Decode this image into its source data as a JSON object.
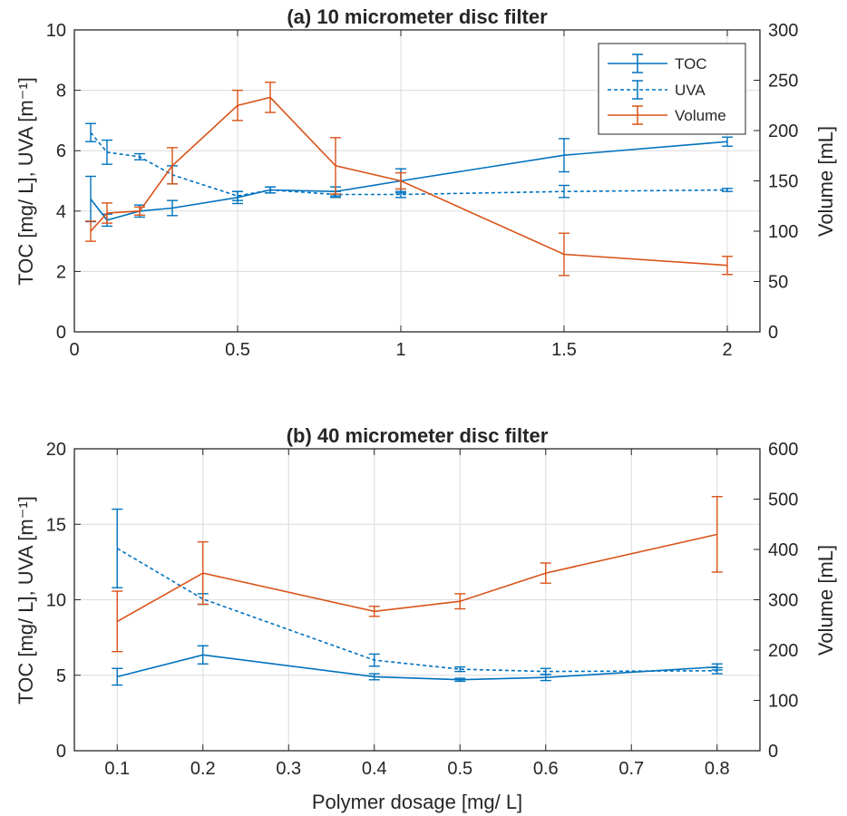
{
  "colors": {
    "toc": "#0072BD",
    "uva": "#0072BD",
    "volume": "#D95319",
    "grid": "#dcdcdc",
    "axis": "#262626"
  },
  "xlabel": "Polymer dosage [mg/ L]",
  "chart_data": [
    {
      "type": "line",
      "title": "(a) 10 micrometer disc filter",
      "ylabel_left": "TOC [mg/ L], UVA [m⁻¹]",
      "ylabel_right": "Volume [mL]",
      "xlim": [
        0,
        2.1
      ],
      "ylim_left": [
        0,
        10
      ],
      "ylim_right": [
        0,
        300
      ],
      "x_ticks": [
        0,
        0.5,
        1,
        1.5,
        2
      ],
      "x_tick_labels": [
        "0",
        "0.5",
        "1",
        "1.5",
        "2"
      ],
      "y_left_ticks": [
        0,
        2,
        4,
        6,
        8,
        10
      ],
      "y_right_ticks": [
        0,
        50,
        100,
        150,
        200,
        250,
        300
      ],
      "grid": true,
      "legend": {
        "placement": "top-right",
        "entries": [
          "TOC",
          "UVA",
          "Volume"
        ]
      },
      "series": [
        {
          "name": "TOC",
          "axis": "left",
          "style": "solid",
          "x": [
            0.05,
            0.1,
            0.2,
            0.3,
            0.5,
            0.6,
            0.8,
            1,
            1.5,
            2
          ],
          "y": [
            4.4,
            3.7,
            4.0,
            4.1,
            4.45,
            4.7,
            4.65,
            5.0,
            5.85,
            6.3
          ],
          "err": [
            0.75,
            0.2,
            0.2,
            0.25,
            0.2,
            0.1,
            0.15,
            0.4,
            0.55,
            0.15
          ]
        },
        {
          "name": "UVA",
          "axis": "left",
          "style": "dashed",
          "x": [
            0.05,
            0.1,
            0.2,
            0.3,
            0.5,
            0.6,
            0.8,
            1,
            1.5,
            2
          ],
          "y": [
            6.6,
            5.95,
            5.8,
            5.2,
            4.5,
            4.7,
            4.55,
            4.55,
            4.65,
            4.7
          ],
          "err": [
            0.3,
            0.4,
            0.1,
            0.3,
            0.15,
            0.1,
            0.1,
            0.1,
            0.2,
            0.05
          ]
        },
        {
          "name": "Volume",
          "axis": "right",
          "style": "solid",
          "x": [
            0.05,
            0.1,
            0.2,
            0.3,
            0.5,
            0.6,
            0.8,
            1,
            1.5,
            2
          ],
          "y": [
            100,
            118,
            120,
            165,
            225,
            233,
            165,
            150,
            77,
            66
          ],
          "err": [
            10,
            10,
            4,
            18,
            15,
            15,
            28,
            8,
            21,
            9
          ]
        }
      ]
    },
    {
      "type": "line",
      "title": "(b) 40 micrometer disc filter",
      "xlabel": "Polymer dosage [mg/ L]",
      "ylabel_left": "TOC [mg/ L], UVA [m⁻¹]",
      "ylabel_right": "Volume [mL]",
      "xlim": [
        0.05,
        0.85
      ],
      "ylim_left": [
        0,
        20
      ],
      "ylim_right": [
        0,
        600
      ],
      "x_ticks": [
        0.1,
        0.2,
        0.3,
        0.4,
        0.5,
        0.6,
        0.7,
        0.8
      ],
      "x_tick_labels": [
        "0.1",
        "0.2",
        "0.3",
        "0.4",
        "0.5",
        "0.6",
        "0.7",
        "0.8"
      ],
      "y_left_ticks": [
        0,
        5,
        10,
        15,
        20
      ],
      "y_right_ticks": [
        0,
        100,
        200,
        300,
        400,
        500,
        600
      ],
      "grid": true,
      "series": [
        {
          "name": "TOC",
          "axis": "left",
          "style": "solid",
          "x": [
            0.1,
            0.2,
            0.4,
            0.5,
            0.6,
            0.8
          ],
          "y": [
            4.9,
            6.35,
            4.9,
            4.7,
            4.85,
            5.55
          ],
          "err": [
            0.55,
            0.6,
            0.2,
            0.1,
            0.2,
            0.2
          ]
        },
        {
          "name": "UVA",
          "axis": "left",
          "style": "dashed",
          "x": [
            0.1,
            0.2,
            0.4,
            0.5,
            0.6,
            0.8
          ],
          "y": [
            13.4,
            10.05,
            6.0,
            5.4,
            5.25,
            5.3
          ],
          "err": [
            2.6,
            0.35,
            0.4,
            0.15,
            0.2,
            0.2
          ]
        },
        {
          "name": "Volume",
          "axis": "right",
          "style": "solid",
          "x": [
            0.1,
            0.2,
            0.4,
            0.5,
            0.6,
            0.8
          ],
          "y": [
            257,
            353,
            277,
            297,
            353,
            430
          ],
          "err": [
            60,
            62,
            10,
            15,
            20,
            75
          ]
        }
      ]
    }
  ]
}
